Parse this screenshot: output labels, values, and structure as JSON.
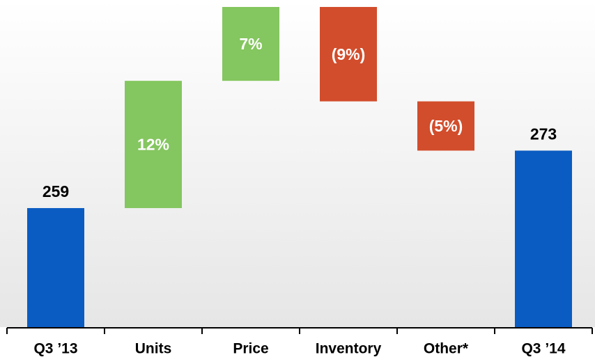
{
  "chart_data": {
    "type": "waterfall",
    "categories": [
      "Q3 ’13",
      "Units",
      "Price",
      "Inventory",
      "Other*",
      "Q3 ’14"
    ],
    "values": [
      259,
      31,
      18,
      -23,
      -12,
      273
    ],
    "value_labels": [
      "259",
      "12%",
      "7%",
      "(9%)",
      "(5%)",
      "273"
    ],
    "colors": [
      "#0a5cc2",
      "#84c65f",
      "#84c65f",
      "#d24d2c",
      "#d24d2c",
      "#0a5cc2"
    ],
    "ylim": [
      230,
      308
    ]
  }
}
